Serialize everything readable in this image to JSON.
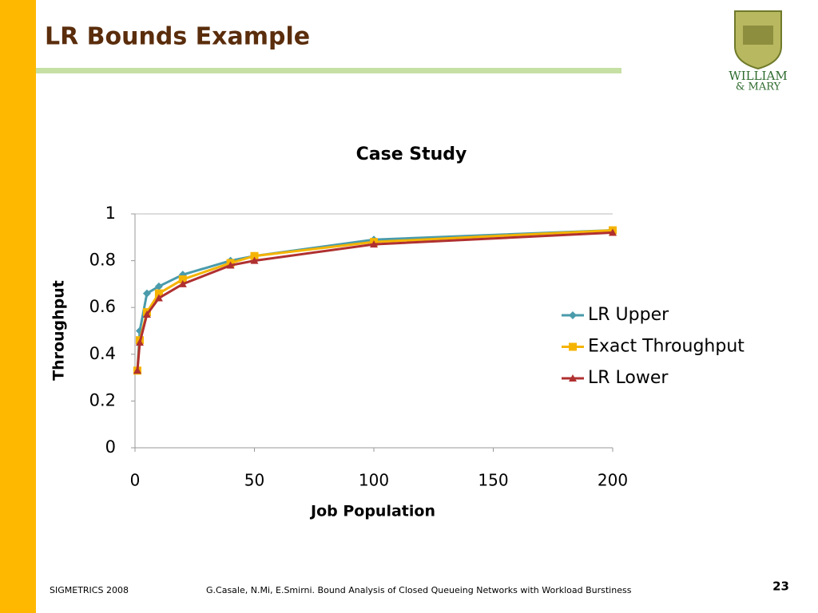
{
  "slide": {
    "title": "LR Bounds Example",
    "logo": [
      "WILLIAM",
      "& MARY"
    ],
    "footer_left": "SIGMETRICS 2008",
    "footer_center": "G.Casale, N.Mi, E.Smirni. Bound Analysis of Closed Queueing Networks with Workload Burstiness",
    "page_number": "23"
  },
  "chart_data": {
    "type": "line",
    "title": "Case Study",
    "x_label": "Job Population",
    "y_label": "Throughput",
    "x": [
      1,
      2,
      5,
      10,
      20,
      40,
      50,
      100,
      200
    ],
    "series": [
      {
        "name": "LR Upper",
        "color": "#4a9bab",
        "marker": "diamond",
        "values": [
          0.33,
          0.5,
          0.66,
          0.69,
          0.74,
          0.8,
          0.82,
          0.89,
          0.93
        ]
      },
      {
        "name": "Exact Throughput",
        "color": "#f5b400",
        "marker": "square",
        "values": [
          0.33,
          0.46,
          0.58,
          0.66,
          0.72,
          0.79,
          0.82,
          0.88,
          0.93
        ]
      },
      {
        "name": "LR Lower",
        "color": "#b03030",
        "marker": "triangle",
        "values": [
          0.33,
          0.45,
          0.57,
          0.64,
          0.7,
          0.78,
          0.8,
          0.87,
          0.92
        ]
      }
    ],
    "xlim": [
      0,
      200
    ],
    "xticks": [
      0,
      50,
      100,
      150,
      200
    ],
    "ylim": [
      0,
      1
    ],
    "yticks": [
      0,
      0.2,
      0.4,
      0.6,
      0.8,
      1
    ],
    "grid": false,
    "legend": "right"
  }
}
